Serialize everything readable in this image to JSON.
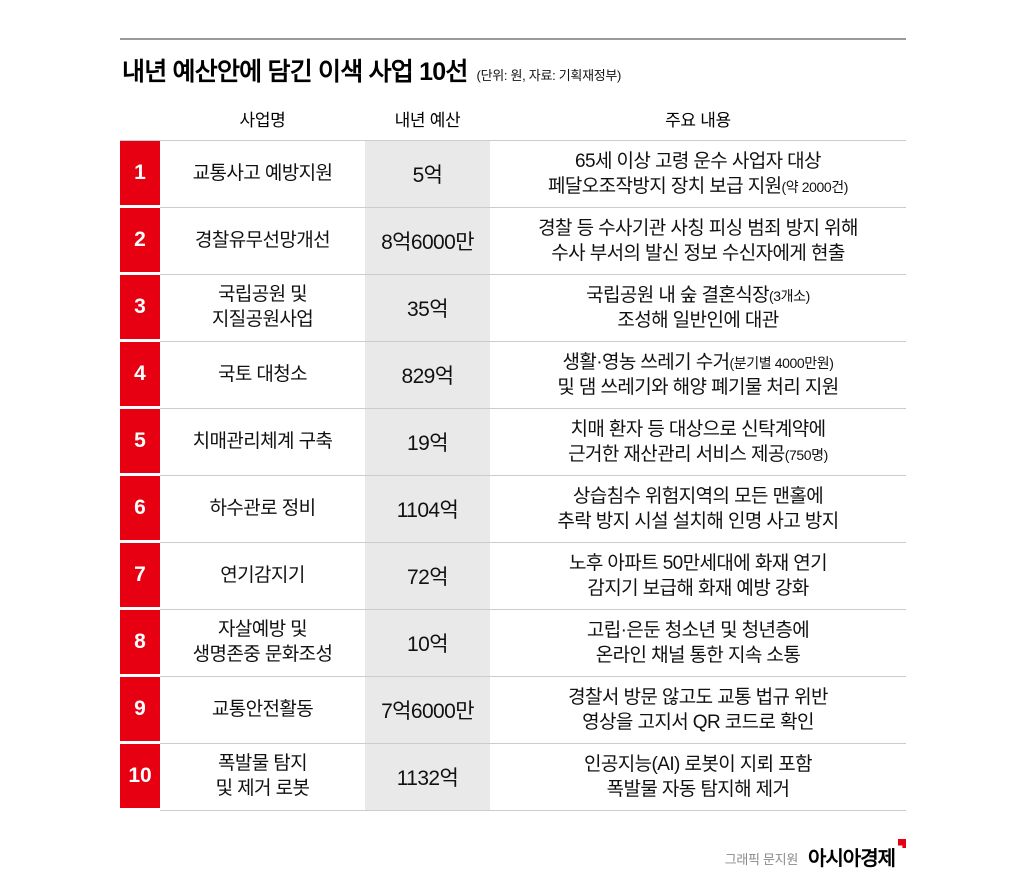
{
  "header": {
    "title": "내년 예산안에 담긴 이색 사업 10선",
    "note": "(단위: 원, 자료: 기획재정부)"
  },
  "chart_data": {
    "type": "table",
    "title": "내년 예산안에 담긴 이색 사업 10선",
    "unit_note": "단위: 원, 자료: 기획재정부",
    "columns": [
      "사업명",
      "내년 예산",
      "주요 내용"
    ],
    "rows": [
      {
        "no": "1",
        "name": "교통사고 예방지원",
        "budget": "5억",
        "budget_won": 500000000,
        "desc1": "65세 이상 고령 운수 사업자 대상",
        "desc1_small": "",
        "desc2": "페달오조작방지 장치 보급 지원",
        "desc2_small": "(약 2000건)"
      },
      {
        "no": "2",
        "name": "경찰유무선망개선",
        "budget": "8억6000만",
        "budget_won": 860000000,
        "desc1": "경찰 등 수사기관 사칭 피싱 범죄 방지 위해",
        "desc1_small": "",
        "desc2": "수사 부서의 발신 정보 수신자에게 현출",
        "desc2_small": ""
      },
      {
        "no": "3",
        "name": "국립공원 및\n지질공원사업",
        "budget": "35억",
        "budget_won": 3500000000,
        "desc1": "국립공원 내 숲 결혼식장",
        "desc1_small": "(3개소)",
        "desc2": "조성해 일반인에 대관",
        "desc2_small": ""
      },
      {
        "no": "4",
        "name": "국토 대청소",
        "budget": "829억",
        "budget_won": 82900000000,
        "desc1": "생활·영농 쓰레기 수거",
        "desc1_small": "(분기별 4000만원)",
        "desc2": "및 댐 쓰레기와 해양 폐기물 처리 지원",
        "desc2_small": ""
      },
      {
        "no": "5",
        "name": "치매관리체계 구축",
        "budget": "19억",
        "budget_won": 1900000000,
        "desc1": "치매 환자 등 대상으로 신탁계약에",
        "desc1_small": "",
        "desc2": "근거한 재산관리 서비스 제공",
        "desc2_small": "(750명)"
      },
      {
        "no": "6",
        "name": "하수관로 정비",
        "budget": "1104억",
        "budget_won": 110400000000,
        "desc1": "상습침수 위험지역의 모든 맨홀에",
        "desc1_small": "",
        "desc2": "추락 방지 시설 설치해 인명 사고 방지",
        "desc2_small": ""
      },
      {
        "no": "7",
        "name": "연기감지기",
        "budget": "72억",
        "budget_won": 7200000000,
        "desc1": "노후 아파트 50만세대에 화재 연기",
        "desc1_small": "",
        "desc2": "감지기 보급해 화재 예방 강화",
        "desc2_small": ""
      },
      {
        "no": "8",
        "name": "자살예방 및\n생명존중 문화조성",
        "budget": "10억",
        "budget_won": 1000000000,
        "desc1": "고립·은둔 청소년 및 청년층에",
        "desc1_small": "",
        "desc2": "온라인 채널 통한 지속 소통",
        "desc2_small": ""
      },
      {
        "no": "9",
        "name": "교통안전활동",
        "budget": "7억6000만",
        "budget_won": 760000000,
        "desc1": "경찰서 방문 않고도 교통 법규 위반",
        "desc1_small": "",
        "desc2": "영상을 고지서 QR 코드로 확인",
        "desc2_small": ""
      },
      {
        "no": "10",
        "name": "폭발물 탐지\n및 제거 로봇",
        "budget": "1132억",
        "budget_won": 113200000000,
        "desc1": "인공지능(AI) 로봇이 지뢰 포함",
        "desc1_small": "",
        "desc2": "폭발물 자동 탐지해 제거",
        "desc2_small": ""
      }
    ]
  },
  "footer": {
    "credit": "그래픽 문지원",
    "brand": "아시아경제"
  },
  "colors": {
    "accent_red": "#e60012",
    "budget_bg": "#e9e9e9",
    "separator": "#cccccc"
  }
}
